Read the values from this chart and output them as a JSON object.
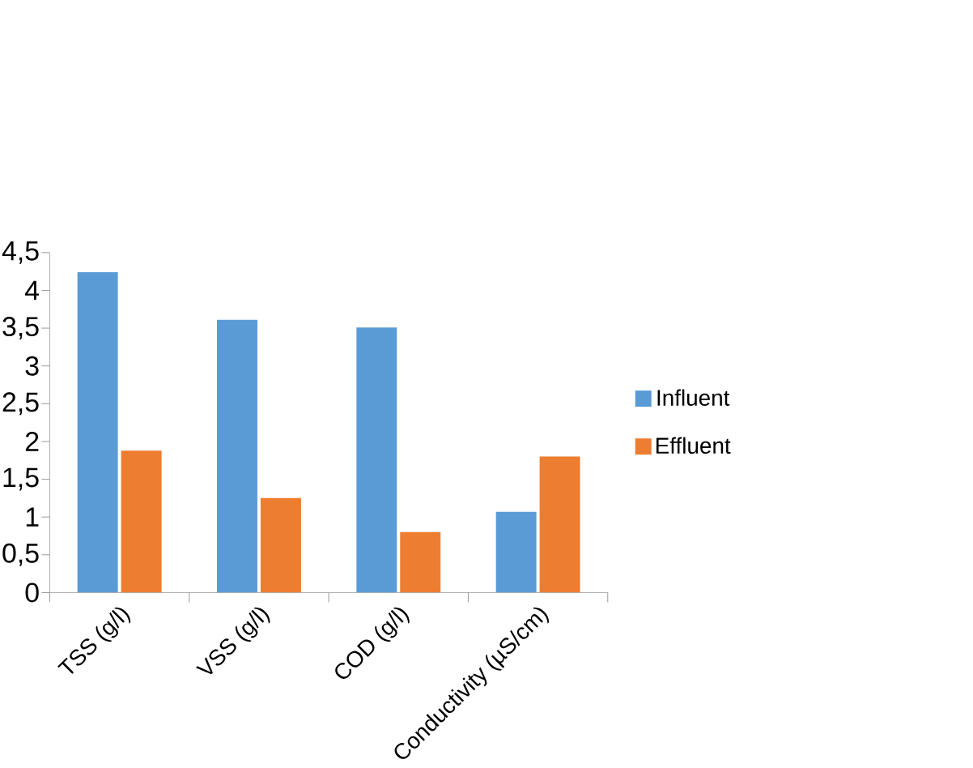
{
  "chart_data": {
    "type": "bar",
    "categories": [
      "TSS (g/l)",
      "VSS (g/l)",
      "COD (g/l)",
      "Conductivity (µS/cm)"
    ],
    "series": [
      {
        "name": "Influent",
        "color": "#5b9bd5",
        "values": [
          4.24,
          3.61,
          3.51,
          1.07
        ]
      },
      {
        "name": "Effluent",
        "color": "#ed7d31",
        "values": [
          1.88,
          1.25,
          0.8,
          1.8
        ]
      }
    ],
    "ylim": [
      0,
      4.5
    ],
    "yticks": [
      0,
      {
        "value": 0.5,
        "label": "0,5"
      },
      1,
      {
        "value": 1.5,
        "label": "1,5"
      },
      2,
      {
        "value": 2.5,
        "label": "2,5"
      },
      3,
      {
        "value": 3.5,
        "label": "3,5"
      },
      4,
      {
        "value": 4.5,
        "label": "4,5"
      }
    ],
    "grid": false,
    "legend": "right"
  }
}
